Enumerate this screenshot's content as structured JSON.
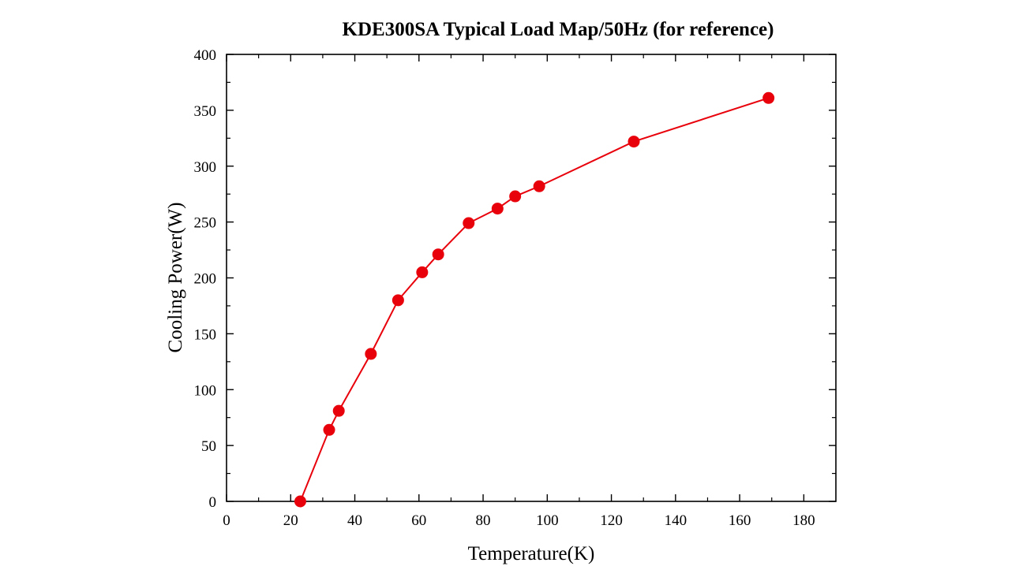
{
  "chart_data": {
    "type": "line",
    "title": "KDE300SA Typical Load Map/50Hz (for reference)",
    "xlabel": "Temperature(K)",
    "ylabel": "Cooling Power(W)",
    "xlim": [
      0,
      190
    ],
    "ylim": [
      0,
      400
    ],
    "xticks": [
      0,
      20,
      40,
      60,
      80,
      100,
      120,
      140,
      160,
      180
    ],
    "yticks": [
      0,
      50,
      100,
      150,
      200,
      250,
      300,
      350,
      400
    ],
    "grid": false,
    "legend": "none",
    "series": [
      {
        "color": "#e8000b",
        "marker": "circle",
        "points": [
          {
            "x": 23,
            "y": 0
          },
          {
            "x": 32,
            "y": 64
          },
          {
            "x": 35,
            "y": 81
          },
          {
            "x": 45,
            "y": 132
          },
          {
            "x": 53.5,
            "y": 180
          },
          {
            "x": 61,
            "y": 205
          },
          {
            "x": 66,
            "y": 221
          },
          {
            "x": 75.5,
            "y": 249
          },
          {
            "x": 84.5,
            "y": 262
          },
          {
            "x": 90,
            "y": 273
          },
          {
            "x": 97.5,
            "y": 282
          },
          {
            "x": 127,
            "y": 322
          },
          {
            "x": 169,
            "y": 361
          }
        ]
      }
    ]
  }
}
